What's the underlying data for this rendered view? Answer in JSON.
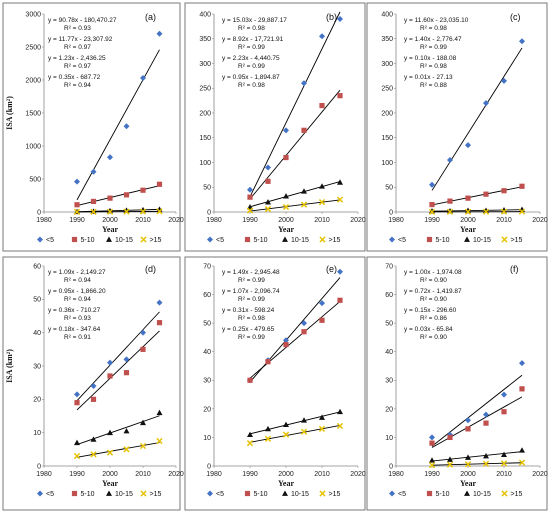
{
  "chart_data": [
    {
      "type": "scatter",
      "panel_label": "(a)",
      "xlabel": "Year",
      "ylabel": "ISA (km²)",
      "xlim": [
        1980,
        2020
      ],
      "ylim": [
        0,
        3000
      ],
      "xticks": [
        1980,
        1990,
        2000,
        2010,
        2020
      ],
      "yticks": [
        0,
        500,
        1000,
        1500,
        2000,
        2500,
        3000
      ],
      "x": [
        1990,
        1995,
        2000,
        2005,
        2010,
        2015
      ],
      "series": [
        {
          "name": "<5",
          "values": [
            460,
            610,
            830,
            1300,
            2030,
            2700
          ],
          "equation": "y = 90.78x - 180,470.27",
          "r2": "R² = 0.93"
        },
        {
          "name": "5-10",
          "values": [
            110,
            160,
            210,
            260,
            330,
            420
          ],
          "equation": "y = 11.77x - 23,307.92",
          "r2": "R² = 0.97"
        },
        {
          "name": "10-15",
          "values": [
            5,
            10,
            18,
            25,
            33,
            40
          ],
          "equation": "y = 1.23x - 2,436.25",
          "r2": "R² = 0.97"
        },
        {
          "name": ">15",
          "values": [
            2,
            3,
            4,
            6,
            8,
            10
          ],
          "equation": "y = 0.35x - 687.72",
          "r2": "R² = 0.94"
        }
      ]
    },
    {
      "type": "scatter",
      "panel_label": "(b)",
      "xlabel": "Year",
      "ylabel": "",
      "xlim": [
        1980,
        2020
      ],
      "ylim": [
        0,
        400
      ],
      "xticks": [
        1980,
        1990,
        2000,
        2010,
        2020
      ],
      "yticks": [
        0,
        50,
        100,
        150,
        200,
        250,
        300,
        350,
        400
      ],
      "x": [
        1990,
        1995,
        2000,
        2005,
        2010,
        2015
      ],
      "series": [
        {
          "name": "<5",
          "values": [
            45,
            90,
            165,
            260,
            355,
            390
          ],
          "equation": "y = 15.03x - 29,887.17",
          "r2": "R² = 0.98"
        },
        {
          "name": "5-10",
          "values": [
            30,
            62,
            110,
            165,
            215,
            235
          ],
          "equation": "y = 8.92x - 17,721.91",
          "r2": "R² = 0.99"
        },
        {
          "name": "10-15",
          "values": [
            10,
            20,
            32,
            42,
            52,
            60
          ],
          "equation": "y = 2.23x - 4,440.75",
          "r2": "R² = 0.99"
        },
        {
          "name": ">15",
          "values": [
            3,
            6,
            10,
            15,
            20,
            25
          ],
          "equation": "y = 0.95x - 1,894.87",
          "r2": "R² = 0.98"
        }
      ]
    },
    {
      "type": "scatter",
      "panel_label": "(c)",
      "xlabel": "Year",
      "ylabel": "",
      "xlim": [
        1980,
        2020
      ],
      "ylim": [
        0,
        400
      ],
      "xticks": [
        1980,
        1990,
        2000,
        2010,
        2020
      ],
      "yticks": [
        0,
        50,
        100,
        150,
        200,
        250,
        300,
        350,
        400
      ],
      "x": [
        1990,
        1995,
        2000,
        2005,
        2010,
        2015
      ],
      "series": [
        {
          "name": "<5",
          "values": [
            55,
            105,
            135,
            220,
            265,
            345
          ],
          "equation": "y = 11.60x - 23,035.10",
          "r2": "R² = 0.98"
        },
        {
          "name": "5-10",
          "values": [
            15,
            22,
            28,
            36,
            43,
            52
          ],
          "equation": "y = 1.40x - 2,776.47",
          "r2": "R² = 0.99"
        },
        {
          "name": "10-15",
          "values": [
            2,
            2,
            3,
            3,
            4,
            5
          ],
          "equation": "y = 0.10x - 188.08",
          "r2": "R² = 0.98"
        },
        {
          "name": ">15",
          "values": [
            0.3,
            0.4,
            0.5,
            0.6,
            0.7,
            0.8
          ],
          "equation": "y = 0.01x - 27.13",
          "r2": "R² = 0.88"
        }
      ]
    },
    {
      "type": "scatter",
      "panel_label": "(d)",
      "xlabel": "Year",
      "ylabel": "ISA (km²)",
      "xlim": [
        1980,
        2020
      ],
      "ylim": [
        0,
        60
      ],
      "xticks": [
        1980,
        1990,
        2000,
        2010,
        2020
      ],
      "yticks": [
        0,
        10,
        20,
        30,
        40,
        50,
        60
      ],
      "x": [
        1990,
        1995,
        2000,
        2005,
        2010,
        2015
      ],
      "series": [
        {
          "name": "<5",
          "values": [
            21.5,
            24,
            31,
            32,
            40,
            49
          ],
          "equation": "y = 1.09x - 2,149.27",
          "r2": "R² = 0.94"
        },
        {
          "name": "5-10",
          "values": [
            19,
            20,
            27,
            28,
            35,
            43
          ],
          "equation": "y = 0.95x - 1,866.20",
          "r2": "R² = 0.94"
        },
        {
          "name": "10-15",
          "values": [
            7,
            8,
            10,
            10.5,
            13,
            16
          ],
          "equation": "y = 0.36x - 710.27",
          "r2": "R² = 0.93"
        },
        {
          "name": ">15",
          "values": [
            3,
            3.5,
            4,
            5,
            6,
            7.5
          ],
          "equation": "y = 0.18x - 347.64",
          "r2": "R² = 0.91"
        }
      ]
    },
    {
      "type": "scatter",
      "panel_label": "(e)",
      "xlabel": "Year",
      "ylabel": "",
      "xlim": [
        1980,
        2020
      ],
      "ylim": [
        0,
        70
      ],
      "xticks": [
        1980,
        1990,
        2000,
        2010,
        2020
      ],
      "yticks": [
        0,
        10,
        20,
        30,
        40,
        50,
        60,
        70
      ],
      "x": [
        1990,
        1995,
        2000,
        2005,
        2010,
        2015
      ],
      "series": [
        {
          "name": "<5",
          "values": [
            30,
            37,
            44,
            50,
            57,
            68
          ],
          "equation": "y = 1.49x - 2,945.48",
          "r2": "R² = 0.99"
        },
        {
          "name": "5-10",
          "values": [
            30,
            36.5,
            42.5,
            47,
            51,
            58
          ],
          "equation": "y = 1.07x - 2,096.74",
          "r2": "R² = 0.99"
        },
        {
          "name": "10-15",
          "values": [
            11,
            13,
            14.5,
            16,
            17,
            19
          ],
          "equation": "y = 0.31x - 598.24",
          "r2": "R² = 0.98"
        },
        {
          "name": ">15",
          "values": [
            8,
            9.5,
            11,
            12,
            13,
            14
          ],
          "equation": "y = 0.25x - 479.65",
          "r2": "R² = 0.99"
        }
      ]
    },
    {
      "type": "scatter",
      "panel_label": "(f)",
      "xlabel": "Year",
      "ylabel": "",
      "xlim": [
        1980,
        2020
      ],
      "ylim": [
        0,
        70
      ],
      "xticks": [
        1980,
        1990,
        2000,
        2010,
        2020
      ],
      "yticks": [
        0,
        10,
        20,
        30,
        40,
        50,
        60,
        70
      ],
      "x": [
        1990,
        1995,
        2000,
        2005,
        2010,
        2015
      ],
      "series": [
        {
          "name": "<5",
          "values": [
            10,
            11,
            16,
            18,
            25,
            36
          ],
          "equation": "y = 1.00x - 1,974.08",
          "r2": "R² = 0.90"
        },
        {
          "name": "5-10",
          "values": [
            8,
            10,
            13,
            15,
            19,
            27
          ],
          "equation": "y = 0.72x - 1,419.87",
          "r2": "R² = 0.90"
        },
        {
          "name": "10-15",
          "values": [
            2,
            2.3,
            3,
            3.5,
            4,
            5.5
          ],
          "equation": "y = 0.15x - 296.60",
          "r2": "R² = 0.86"
        },
        {
          "name": ">15",
          "values": [
            0.3,
            0.5,
            0.6,
            0.8,
            0.9,
            1.2
          ],
          "equation": "y = 0.03x - 65.84",
          "r2": "R² = 0.90"
        }
      ]
    }
  ],
  "colors": {
    "lt5": "#4472c4",
    "5to10": "#c0504d",
    "10to15": "#111111",
    "gt15": "#e6c200",
    "trend": "#000000",
    "border": "#7a7a7a"
  },
  "markers": {
    "lt5": "diamond",
    "5to10": "square",
    "10to15": "triangle",
    "gt15": "x-cross"
  }
}
